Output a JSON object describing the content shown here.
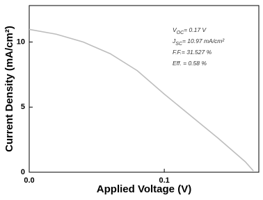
{
  "chart_data": {
    "type": "line",
    "x_label": "Applied Voltage (V)",
    "y_label": "Current Density (mA/cm²)",
    "x": [
      0,
      0.02,
      0.04,
      0.06,
      0.08,
      0.1,
      0.12,
      0.14,
      0.16,
      0.166
    ],
    "values": [
      10.97,
      10.6,
      10.0,
      9.1,
      7.8,
      6.0,
      4.3,
      2.6,
      0.8,
      0.1
    ],
    "color": "#bdbdbd",
    "xlim": [
      0,
      0.17
    ],
    "xticks": [
      {
        "value": 0,
        "label": "0.0"
      },
      0.1
    ],
    "ylim": [
      0,
      12.8
    ],
    "yticks": [
      0,
      5,
      10
    ],
    "annotations": [
      [
        {
          "text": "V"
        },
        {
          "text": "OC",
          "sub": true
        },
        {
          "text": "= 0.17 V"
        }
      ],
      [
        {
          "text": "J"
        },
        {
          "text": "SC",
          "sub": true
        },
        {
          "text": "= 10.97 mA/cm²"
        }
      ],
      [
        {
          "text": "F.F.= 31.527 %"
        }
      ],
      [
        {
          "text": "Eff. = 0.58 %"
        }
      ]
    ]
  }
}
